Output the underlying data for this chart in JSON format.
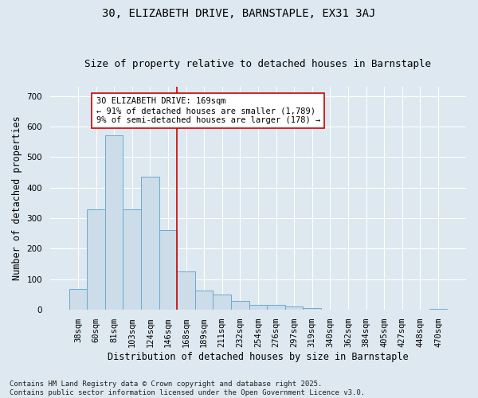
{
  "title": "30, ELIZABETH DRIVE, BARNSTAPLE, EX31 3AJ",
  "subtitle": "Size of property relative to detached houses in Barnstaple",
  "xlabel": "Distribution of detached houses by size in Barnstaple",
  "ylabel": "Number of detached properties",
  "categories": [
    "38sqm",
    "60sqm",
    "81sqm",
    "103sqm",
    "124sqm",
    "146sqm",
    "168sqm",
    "189sqm",
    "211sqm",
    "232sqm",
    "254sqm",
    "276sqm",
    "297sqm",
    "319sqm",
    "340sqm",
    "362sqm",
    "384sqm",
    "405sqm",
    "427sqm",
    "448sqm",
    "470sqm"
  ],
  "values": [
    68,
    330,
    570,
    330,
    435,
    260,
    125,
    62,
    50,
    30,
    17,
    15,
    10,
    6,
    1,
    1,
    0,
    0,
    0,
    0,
    2
  ],
  "bar_color": "#ccdce8",
  "bar_edge_color": "#6aaad4",
  "vline_x_index": 6,
  "vline_color": "#cc0000",
  "annotation_text": "30 ELIZABETH DRIVE: 169sqm\n← 91% of detached houses are smaller (1,789)\n9% of semi-detached houses are larger (178) →",
  "annotation_box_facecolor": "#ffffff",
  "annotation_box_edgecolor": "#cc0000",
  "background_color": "#dde8f0",
  "plot_background": "#dde8f0",
  "grid_color": "#ffffff",
  "footer": "Contains HM Land Registry data © Crown copyright and database right 2025.\nContains public sector information licensed under the Open Government Licence v3.0.",
  "ylim": [
    0,
    730
  ],
  "yticks": [
    0,
    100,
    200,
    300,
    400,
    500,
    600,
    700
  ],
  "title_fontsize": 10,
  "subtitle_fontsize": 9,
  "xlabel_fontsize": 8.5,
  "ylabel_fontsize": 8.5,
  "tick_fontsize": 7.5,
  "annotation_fontsize": 7.5,
  "footer_fontsize": 6.5
}
